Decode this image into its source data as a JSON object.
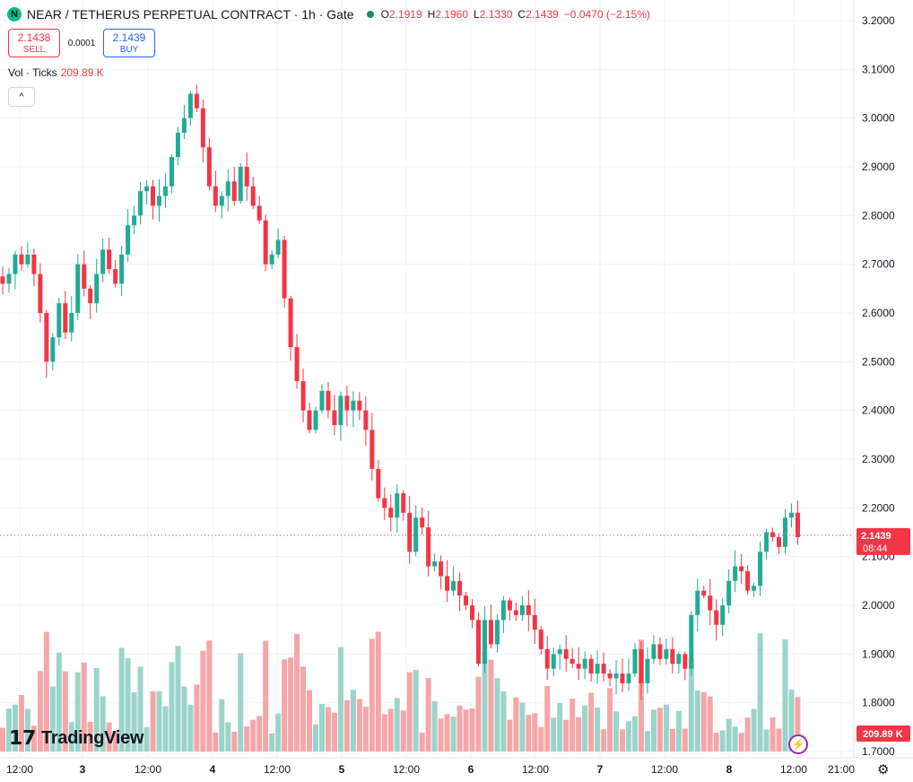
{
  "header": {
    "logo_letter": "N",
    "title": "NEAR / TETHERUS PERPETUAL CONTRACT · 1h · Gate",
    "ohlc": [
      {
        "label": "O",
        "value": "2.1919"
      },
      {
        "label": "H",
        "value": "2.1960"
      },
      {
        "label": "L",
        "value": "2.1330"
      },
      {
        "label": "C",
        "value": "2.1439"
      }
    ],
    "change": "−0.0470 (−2.15%)"
  },
  "trade": {
    "sell_price": "2.1438",
    "sell_label": "SELL",
    "spread": "0.0001",
    "buy_price": "2.1439",
    "buy_label": "BUY"
  },
  "volume_legend": {
    "label": "Vol · Ticks",
    "value": "209.89 K"
  },
  "collapse_glyph": "^",
  "brand": "TradingView",
  "colors": {
    "up": "#22ab94",
    "down": "#f23645",
    "up_vol": "#9bd4ca",
    "down_vol": "#f5a6a8",
    "grid": "#f0f3fa"
  },
  "chart_data": {
    "type": "candlestick",
    "y_axis_ticks": [
      "3.2000",
      "3.1000",
      "3.0000",
      "2.9000",
      "2.8000",
      "2.7000",
      "2.6000",
      "2.5000",
      "2.4000",
      "2.3000",
      "2.2000",
      "2.1000",
      "2.0000",
      "1.9000",
      "1.8000",
      "1.7000"
    ],
    "ylim": [
      1.7,
      3.2
    ],
    "x_axis_ticks": [
      "12:00",
      "3",
      "12:00",
      "4",
      "12:00",
      "5",
      "12:00",
      "6",
      "12:00",
      "7",
      "12:00",
      "8",
      "12:00",
      "21:00"
    ],
    "x_axis_bold": [
      "3",
      "4",
      "5",
      "6",
      "7",
      "8"
    ],
    "last_price_label": "2.1439",
    "countdown_label": "08:44",
    "volume_label": "209.89 K",
    "approx_closes": [
      2.66,
      2.68,
      2.72,
      2.7,
      2.72,
      2.68,
      2.6,
      2.5,
      2.55,
      2.62,
      2.56,
      2.6,
      2.7,
      2.65,
      2.62,
      2.68,
      2.73,
      2.69,
      2.66,
      2.72,
      2.78,
      2.8,
      2.85,
      2.86,
      2.82,
      2.84,
      2.86,
      2.92,
      2.97,
      3.0,
      3.05,
      3.02,
      2.94,
      2.86,
      2.82,
      2.84,
      2.87,
      2.83,
      2.9,
      2.86,
      2.82,
      2.79,
      2.7,
      2.72,
      2.75,
      2.63,
      2.53,
      2.46,
      2.4,
      2.36,
      2.4,
      2.44,
      2.4,
      2.37,
      2.43,
      2.4,
      2.42,
      2.4,
      2.36,
      2.28,
      2.22,
      2.2,
      2.18,
      2.23,
      2.19,
      2.11,
      2.18,
      2.16,
      2.08,
      2.09,
      2.06,
      2.03,
      2.05,
      2.02,
      2.0,
      1.97,
      1.88,
      1.97,
      1.92,
      1.97,
      2.01,
      1.99,
      1.98,
      2.0,
      1.98,
      1.95,
      1.91,
      1.87,
      1.9,
      1.91,
      1.89,
      1.88,
      1.87,
      1.89,
      1.86,
      1.88,
      1.86,
      1.85,
      1.86,
      1.84,
      1.86,
      1.91,
      1.84,
      1.89,
      1.92,
      1.89,
      1.91,
      1.88,
      1.9,
      1.87,
      1.98,
      2.03,
      2.02,
      1.99,
      1.96,
      2.0,
      2.05,
      2.08,
      2.07,
      2.03,
      2.04,
      2.11,
      2.15,
      2.14,
      2.12,
      2.18,
      2.19,
      2.14
    ]
  }
}
